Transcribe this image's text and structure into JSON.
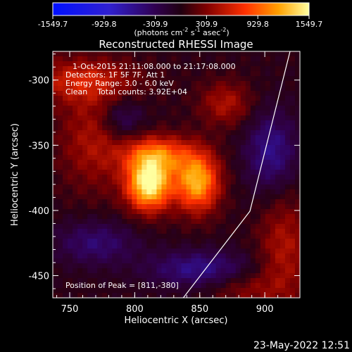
{
  "colorbar": {
    "ticks": [
      "-1549.7",
      "-929.8",
      "-309.9",
      "309.9",
      "929.8",
      "1549.7"
    ],
    "unit_html": "(photons cm<tspan dy='-5' font-size='8'>-2</tspan><tspan dy='5'> s</tspan><tspan dy='-5' font-size='8'>-1</tspan><tspan dy='5'> asec</tspan><tspan dy='-5' font-size='8'>-2</tspan><tspan dy='5'>)</tspan>",
    "unit_text": "(photons cm-2 s-1 asec-2)"
  },
  "title": "Reconstructed RHESSI Image",
  "info": [
    "1-Oct-2015 21:11:08.000 to 21:17:08.000",
    "Detectors: 1F 5F 7F, Att 1",
    "Energy Range: 3.0 - 6.0 keV",
    "Clean    Total counts: 3.92E+04"
  ],
  "peak": "Position of Peak = [811,-380]",
  "xlabel": "Heliocentric X (arcsec)",
  "ylabel": "Heliocentric Y (arcsec)",
  "xticks": [
    "750",
    "800",
    "850",
    "900"
  ],
  "yticks": [
    "-300",
    "-350",
    "-400",
    "-450"
  ],
  "timestamp": "23-May-2022 12:51",
  "chart_data": {
    "type": "heatmap",
    "xlim": [
      737,
      927
    ],
    "ylim": [
      -467,
      -278
    ],
    "zlim": [
      -1549.7,
      1549.7
    ],
    "peak": [
      811,
      -380
    ]
  }
}
